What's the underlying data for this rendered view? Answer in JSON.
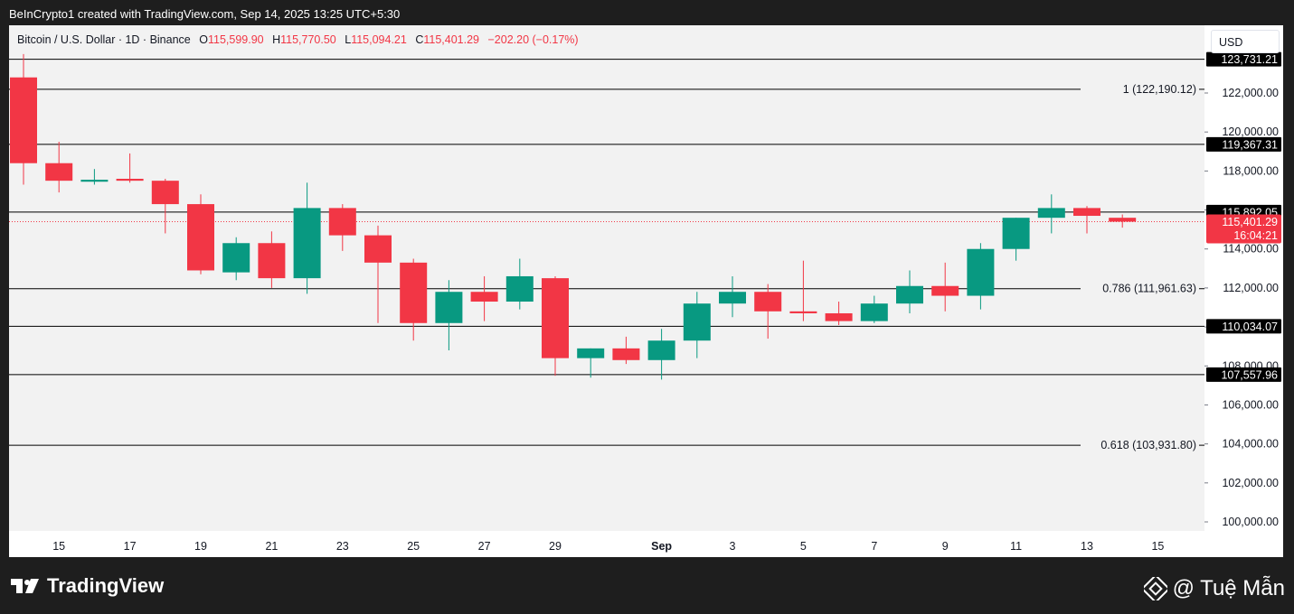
{
  "header": {
    "attribution": "BeInCrypto1 created with TradingView.com, Sep 14, 2025 13:25 UTC+5:30"
  },
  "legend": {
    "symbol": "Bitcoin / U.S. Dollar · 1D · Binance",
    "open_label": "O",
    "open": "115,599.90",
    "high_label": "H",
    "high": "115,770.50",
    "low_label": "L",
    "low": "115,094.21",
    "close_label": "C",
    "close": "115,401.29",
    "change": "−202.20 (−0.17%)"
  },
  "currency": "USD",
  "footer": {
    "logo_text": "TradingView",
    "brand_text": "@ Tuệ Mẫn"
  },
  "colors": {
    "up": "#089981",
    "down": "#f23645",
    "level_line": "#000000",
    "price_tag": "#f23645"
  },
  "chart_data": {
    "type": "candlestick",
    "title": "Bitcoin / U.S. Dollar · 1D · Binance",
    "ylim": [
      99000,
      124500
    ],
    "y_ticks": [
      100000,
      102000,
      104000,
      106000,
      108000,
      110000,
      112000,
      114000,
      116000,
      118000,
      120000,
      122000
    ],
    "y_tick_labels": [
      "100,000.00",
      "102,000.00",
      "104,000.00",
      "106,000.00",
      "108,000.00",
      "110,000.00",
      "112,000.00",
      "114,000.00",
      "116,000.00",
      "118,000.00",
      "120,000.00",
      "122,000.00"
    ],
    "x_labels": [
      {
        "label": "15",
        "day": 1
      },
      {
        "label": "17",
        "day": 3
      },
      {
        "label": "19",
        "day": 5
      },
      {
        "label": "21",
        "day": 7
      },
      {
        "label": "23",
        "day": 9
      },
      {
        "label": "25",
        "day": 11
      },
      {
        "label": "27",
        "day": 13
      },
      {
        "label": "29",
        "day": 15
      },
      {
        "label": "Sep",
        "day": 18
      },
      {
        "label": "3",
        "day": 20
      },
      {
        "label": "5",
        "day": 22
      },
      {
        "label": "7",
        "day": 24
      },
      {
        "label": "9",
        "day": 26
      },
      {
        "label": "11",
        "day": 28
      },
      {
        "label": "13",
        "day": 30
      },
      {
        "label": "15",
        "day": 32
      }
    ],
    "candles": [
      {
        "date": "Aug 14",
        "o": 122800,
        "h": 124000,
        "l": 117300,
        "c": 118400
      },
      {
        "date": "Aug 15",
        "o": 118400,
        "h": 119500,
        "l": 116900,
        "c": 117500
      },
      {
        "date": "Aug 16",
        "o": 117450,
        "h": 118100,
        "l": 117300,
        "c": 117550
      },
      {
        "date": "Aug 17",
        "o": 117600,
        "h": 118900,
        "l": 117400,
        "c": 117500
      },
      {
        "date": "Aug 18",
        "o": 117500,
        "h": 117600,
        "l": 114800,
        "c": 116300
      },
      {
        "date": "Aug 19",
        "o": 116300,
        "h": 116800,
        "l": 112700,
        "c": 112900
      },
      {
        "date": "Aug 20",
        "o": 112800,
        "h": 114600,
        "l": 112400,
        "c": 114300
      },
      {
        "date": "Aug 21",
        "o": 114300,
        "h": 114900,
        "l": 112000,
        "c": 112500
      },
      {
        "date": "Aug 22",
        "o": 112500,
        "h": 117400,
        "l": 111700,
        "c": 116100
      },
      {
        "date": "Aug 23",
        "o": 116100,
        "h": 116300,
        "l": 113900,
        "c": 114700
      },
      {
        "date": "Aug 24",
        "o": 114700,
        "h": 115200,
        "l": 110200,
        "c": 113300
      },
      {
        "date": "Aug 25",
        "o": 113300,
        "h": 113500,
        "l": 109300,
        "c": 110200
      },
      {
        "date": "Aug 26",
        "o": 110200,
        "h": 112400,
        "l": 108800,
        "c": 111800
      },
      {
        "date": "Aug 27",
        "o": 111800,
        "h": 112600,
        "l": 110300,
        "c": 111300
      },
      {
        "date": "Aug 28",
        "o": 111300,
        "h": 113500,
        "l": 110900,
        "c": 112600
      },
      {
        "date": "Aug 29",
        "o": 112500,
        "h": 112600,
        "l": 107500,
        "c": 108400
      },
      {
        "date": "Aug 30",
        "o": 108400,
        "h": 108900,
        "l": 107400,
        "c": 108900
      },
      {
        "date": "Aug 31",
        "o": 108900,
        "h": 109500,
        "l": 108100,
        "c": 108300
      },
      {
        "date": "Sep 1",
        "o": 108300,
        "h": 109900,
        "l": 107300,
        "c": 109300
      },
      {
        "date": "Sep 2",
        "o": 109300,
        "h": 111800,
        "l": 108400,
        "c": 111200
      },
      {
        "date": "Sep 3",
        "o": 111200,
        "h": 112600,
        "l": 110500,
        "c": 111800
      },
      {
        "date": "Sep 4",
        "o": 111800,
        "h": 112200,
        "l": 109400,
        "c": 110800
      },
      {
        "date": "Sep 5",
        "o": 110800,
        "h": 113400,
        "l": 110300,
        "c": 110700
      },
      {
        "date": "Sep 6",
        "o": 110700,
        "h": 111300,
        "l": 110100,
        "c": 110300
      },
      {
        "date": "Sep 7",
        "o": 110300,
        "h": 111600,
        "l": 110200,
        "c": 111200
      },
      {
        "date": "Sep 8",
        "o": 111200,
        "h": 112900,
        "l": 110700,
        "c": 112100
      },
      {
        "date": "Sep 9",
        "o": 112100,
        "h": 113300,
        "l": 110800,
        "c": 111600
      },
      {
        "date": "Sep 10",
        "o": 111600,
        "h": 114300,
        "l": 110900,
        "c": 114000
      },
      {
        "date": "Sep 11",
        "o": 114000,
        "h": 115600,
        "l": 113400,
        "c": 115600
      },
      {
        "date": "Sep 12",
        "o": 115600,
        "h": 116800,
        "l": 114800,
        "c": 116100
      },
      {
        "date": "Sep 13",
        "o": 116100,
        "h": 116200,
        "l": 114800,
        "c": 115700
      },
      {
        "date": "Sep 14",
        "o": 115600,
        "h": 115770,
        "l": 115094,
        "c": 115401
      }
    ],
    "horizontal_levels": [
      {
        "price": 123731.21,
        "tag": "123,731.21",
        "label": ""
      },
      {
        "price": 122190.12,
        "tag": "",
        "label": "1 (122,190.12)"
      },
      {
        "price": 119367.31,
        "tag": "119,367.31",
        "label": ""
      },
      {
        "price": 115892.05,
        "tag": "115,892.05",
        "label": ""
      },
      {
        "price": 111961.63,
        "tag": "",
        "label": "0.786 (111,961.63)"
      },
      {
        "price": 110034.07,
        "tag": "110,034.07",
        "label": ""
      },
      {
        "price": 107557.96,
        "tag": "107,557.96",
        "label": ""
      },
      {
        "price": 103931.8,
        "tag": "",
        "label": "0.618 (103,931.80)"
      }
    ],
    "last_price": {
      "price": 115401.29,
      "label": "115,401.29",
      "countdown": "16:04:21"
    }
  }
}
